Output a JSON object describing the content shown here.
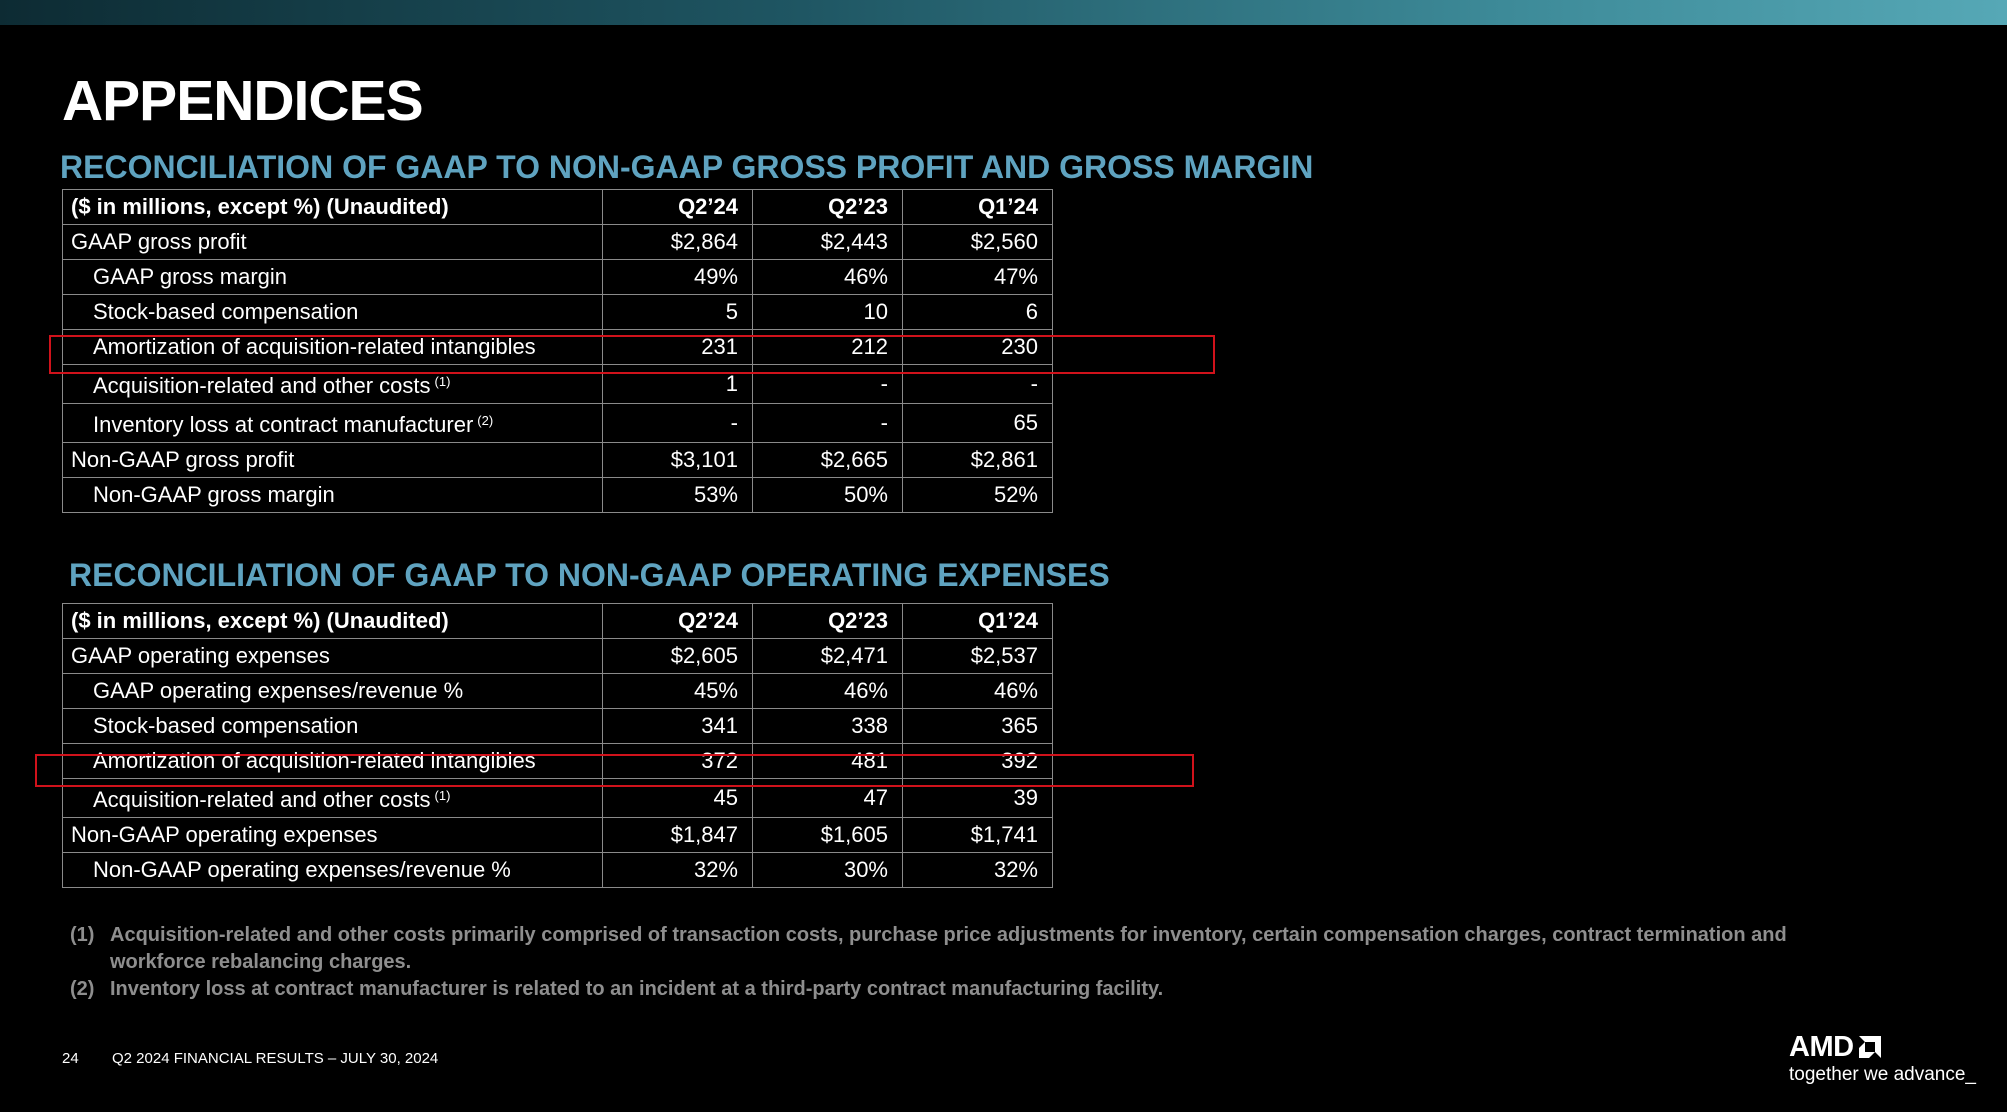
{
  "page": {
    "title": "APPENDICES",
    "page_number": "24",
    "footer_text": "Q2 2024 FINANCIAL RESULTS – JULY 30, 2024"
  },
  "brand": {
    "logo_text": "AMD",
    "tagline": "together we advance_",
    "accent_color": "#5fa3c0",
    "highlight_color": "#d0121b"
  },
  "table1": {
    "title": "RECONCILIATION OF GAAP TO NON-GAAP GROSS PROFIT AND GROSS MARGIN",
    "header": [
      "($ in millions, except %) (Unaudited)",
      "Q2’24",
      "Q2’23",
      "Q1’24"
    ],
    "rows": [
      {
        "label": "GAAP gross profit",
        "note": "",
        "values": [
          "$2,864",
          "$2,443",
          "$2,560"
        ]
      },
      {
        "label": "GAAP gross margin",
        "note": "",
        "values": [
          "49%",
          "46%",
          "47%"
        ]
      },
      {
        "label": "Stock-based compensation",
        "note": "",
        "values": [
          "5",
          "10",
          "6"
        ]
      },
      {
        "label": "Amortization of acquisition-related intangibles",
        "note": "",
        "values": [
          "231",
          "212",
          "230"
        ]
      },
      {
        "label": "Acquisition-related and other costs",
        "note": "(1)",
        "values": [
          "1",
          "-",
          "-"
        ]
      },
      {
        "label": "Inventory loss at contract manufacturer",
        "note": "(2)",
        "values": [
          "-",
          "-",
          "65"
        ]
      },
      {
        "label": "Non-GAAP gross profit",
        "note": "",
        "values": [
          "$3,101",
          "$2,665",
          "$2,861"
        ]
      },
      {
        "label": "Non-GAAP gross margin",
        "note": "",
        "values": [
          "53%",
          "50%",
          "52%"
        ]
      }
    ]
  },
  "table2": {
    "title": "RECONCILIATION OF GAAP TO NON-GAAP OPERATING EXPENSES",
    "header": [
      "($ in millions, except %) (Unaudited)",
      "Q2’24",
      "Q2’23",
      "Q1’24"
    ],
    "rows": [
      {
        "label": "GAAP operating expenses",
        "note": "",
        "values": [
          "$2,605",
          "$2,471",
          "$2,537"
        ]
      },
      {
        "label": "GAAP operating expenses/revenue %",
        "note": "",
        "values": [
          "45%",
          "46%",
          "46%"
        ]
      },
      {
        "label": "Stock-based compensation",
        "note": "",
        "values": [
          "341",
          "338",
          "365"
        ]
      },
      {
        "label": "Amortization of acquisition-related intangibles",
        "note": "",
        "values": [
          "372",
          "481",
          "392"
        ]
      },
      {
        "label": "Acquisition-related and other costs",
        "note": "(1)",
        "values": [
          "45",
          "47",
          "39"
        ]
      },
      {
        "label": "Non-GAAP operating expenses",
        "note": "",
        "values": [
          "$1,847",
          "$1,605",
          "$1,741"
        ]
      },
      {
        "label": "Non-GAAP operating expenses/revenue %",
        "note": "",
        "values": [
          "32%",
          "30%",
          "32%"
        ]
      }
    ]
  },
  "footnotes": [
    {
      "marker": "(1)",
      "text": "Acquisition-related and other costs primarily comprised of transaction costs, purchase price adjustments for inventory, certain compensation charges, contract termination and workforce rebalancing charges."
    },
    {
      "marker": "(2)",
      "text": "Inventory loss at contract manufacturer is related to an incident at a third-party contract manufacturing facility."
    }
  ]
}
